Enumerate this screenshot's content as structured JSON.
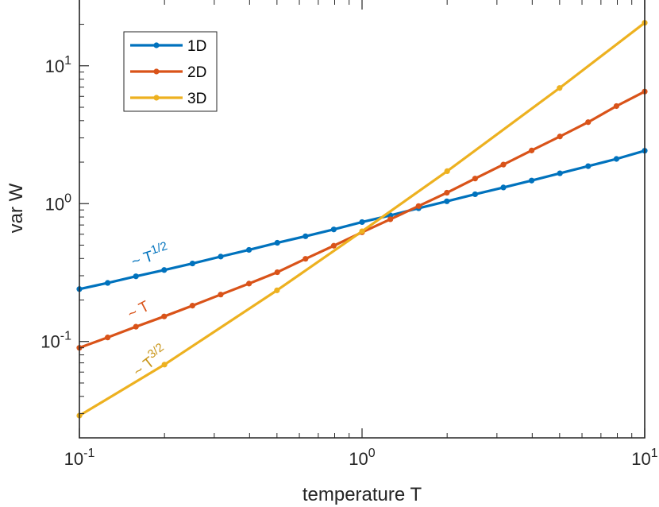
{
  "chart_data": {
    "type": "line",
    "xscale": "log",
    "yscale": "log",
    "xlim": [
      0.1,
      10
    ],
    "ylim": [
      0.02,
      30
    ],
    "xlabel": "temperature T",
    "ylabel": "var W",
    "grid": false,
    "legend_position": "top-left",
    "x_ticks": [
      {
        "value": 0.1,
        "base": "10",
        "exp": "-1"
      },
      {
        "value": 1,
        "base": "10",
        "exp": "0"
      },
      {
        "value": 10,
        "base": "10",
        "exp": "1"
      }
    ],
    "y_ticks": [
      {
        "value": 0.1,
        "base": "10",
        "exp": "-1"
      },
      {
        "value": 1,
        "base": "10",
        "exp": "0"
      },
      {
        "value": 10,
        "base": "10",
        "exp": "1"
      }
    ],
    "series": [
      {
        "name": "1D",
        "color": "#0072BD",
        "x": [
          0.1,
          0.1259,
          0.1585,
          0.1995,
          0.2512,
          0.3162,
          0.3981,
          0.5012,
          0.631,
          0.7943,
          1.0,
          1.2589,
          1.5849,
          1.9953,
          2.5119,
          3.1623,
          3.9811,
          5.0119,
          6.3096,
          7.9433,
          10.0
        ],
        "y": [
          0.24,
          0.266,
          0.297,
          0.33,
          0.368,
          0.413,
          0.462,
          0.52,
          0.58,
          0.65,
          0.735,
          0.822,
          0.926,
          1.04,
          1.17,
          1.31,
          1.47,
          1.66,
          1.87,
          2.11,
          2.42
        ]
      },
      {
        "name": "2D",
        "color": "#D95319",
        "x": [
          0.1,
          0.1259,
          0.1585,
          0.1995,
          0.2512,
          0.3162,
          0.3981,
          0.5012,
          0.631,
          0.7943,
          1.0,
          1.2589,
          1.5849,
          1.9953,
          2.5119,
          3.1623,
          3.9811,
          5.0119,
          6.3096,
          7.9433,
          10.0
        ],
        "y": [
          0.09,
          0.107,
          0.128,
          0.152,
          0.182,
          0.219,
          0.263,
          0.318,
          0.398,
          0.495,
          0.62,
          0.77,
          0.96,
          1.2,
          1.52,
          1.92,
          2.43,
          3.07,
          3.9,
          5.1,
          6.5
        ]
      },
      {
        "name": "3D",
        "color": "#EDB120",
        "x": [
          0.1,
          0.2,
          0.5,
          1.0,
          2.0,
          5.0,
          10.0
        ],
        "y": [
          0.029,
          0.068,
          0.235,
          0.63,
          1.72,
          6.9,
          20.5
        ]
      }
    ],
    "annotations": [
      {
        "prefix": "~ T",
        "sup": "1/2",
        "color": "#0072BD"
      },
      {
        "prefix": "~ T",
        "sup": "",
        "color": "#D95319"
      },
      {
        "prefix": "~ T",
        "sup": "3/2",
        "color": "#C9961A"
      }
    ]
  }
}
